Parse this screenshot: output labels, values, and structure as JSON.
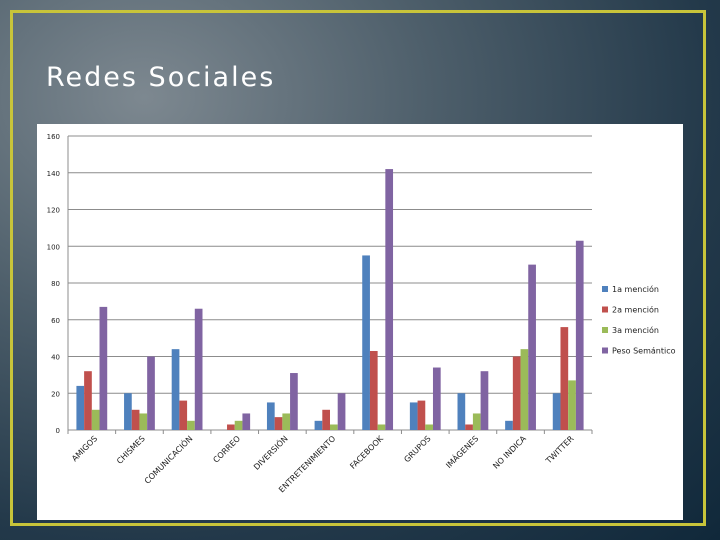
{
  "slide": {
    "title": "Redes Sociales",
    "frame_color": "#c8c43a"
  },
  "chart_data": {
    "type": "bar",
    "title": "",
    "xlabel": "",
    "ylabel": "",
    "ylim": [
      0,
      160
    ],
    "yticks": [
      0,
      20,
      40,
      60,
      80,
      100,
      120,
      140,
      160
    ],
    "grid": true,
    "legend_position": "right",
    "categories": [
      "AMIGOS",
      "CHISMES",
      "COMUNICACIÓN",
      "CORREO",
      "DIVERSIÓN",
      "ENTRETENIMIENTO",
      "FACEBOOK",
      "GRUPOS",
      "IMÁGENES",
      "NO INDICA",
      "TWITTER"
    ],
    "series": [
      {
        "name": "1a mención",
        "color": "#4f81bd",
        "values": [
          24,
          20,
          44,
          0,
          15,
          5,
          95,
          15,
          20,
          5,
          20
        ]
      },
      {
        "name": "2a mención",
        "color": "#c0504d",
        "values": [
          32,
          11,
          16,
          3,
          7,
          11,
          43,
          16,
          3,
          40,
          56
        ]
      },
      {
        "name": "3a mención",
        "color": "#9bbb59",
        "values": [
          11,
          9,
          5,
          5,
          9,
          3,
          3,
          3,
          9,
          44,
          27
        ]
      },
      {
        "name": "Peso Semántico",
        "color": "#8064a2",
        "values": [
          67,
          40,
          66,
          9,
          31,
          20,
          142,
          34,
          32,
          90,
          103
        ]
      }
    ]
  }
}
